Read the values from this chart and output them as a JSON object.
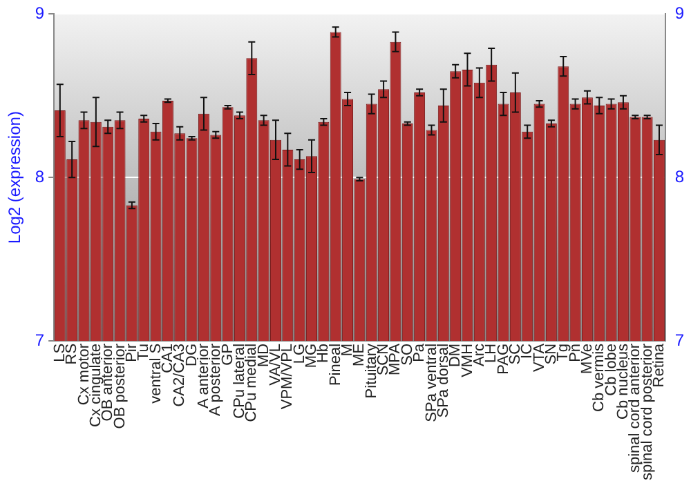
{
  "chart_data": {
    "type": "bar",
    "ylabel": "Log2 (expression)",
    "categories": [
      "LS",
      "RS",
      "Cx motor",
      "Cx cingulate",
      "OB anterior",
      "OB posterior",
      "Pir",
      "Tu",
      "ventral S",
      "CA1",
      "CA2/CA3",
      "DG",
      "A anterior",
      "A posterior",
      "GP",
      "CPu lateral",
      "CPu medial",
      "MD",
      "VA/VL",
      "VPM/VPL",
      "LG",
      "MG",
      "Hb",
      "Pineal",
      "M",
      "ME",
      "Pituitary",
      "SCN",
      "MPA",
      "SO",
      "Pa",
      "SPa ventral",
      "SPa dorsal",
      "DM",
      "VMH",
      "Arc",
      "LH",
      "PAG",
      "SC",
      "IC",
      "VTA",
      "SN",
      "Tg",
      "Pn",
      "MVe",
      "Cb vermis",
      "Cb lobe",
      "Cb nucleus",
      "spinal cord anterior",
      "spinal cord posterior",
      "Retina"
    ],
    "values": [
      8.41,
      8.11,
      8.35,
      8.34,
      8.31,
      8.35,
      7.83,
      8.36,
      8.28,
      8.47,
      8.27,
      8.24,
      8.39,
      8.26,
      8.43,
      8.38,
      8.73,
      8.35,
      8.23,
      8.17,
      8.11,
      8.13,
      8.34,
      8.89,
      8.48,
      7.99,
      8.45,
      8.54,
      8.83,
      8.33,
      8.52,
      8.29,
      8.44,
      8.65,
      8.66,
      8.58,
      8.69,
      8.45,
      8.52,
      8.28,
      8.45,
      8.33,
      8.68,
      8.45,
      8.49,
      8.44,
      8.45,
      8.46,
      8.37,
      8.37,
      8.23
    ],
    "errors": [
      0.16,
      0.11,
      0.05,
      0.15,
      0.04,
      0.05,
      0.02,
      0.02,
      0.05,
      0.01,
      0.04,
      0.01,
      0.1,
      0.02,
      0.01,
      0.02,
      0.1,
      0.03,
      0.12,
      0.1,
      0.06,
      0.1,
      0.02,
      0.03,
      0.04,
      0.01,
      0.06,
      0.05,
      0.06,
      0.01,
      0.02,
      0.03,
      0.1,
      0.04,
      0.1,
      0.09,
      0.1,
      0.07,
      0.12,
      0.04,
      0.02,
      0.02,
      0.06,
      0.03,
      0.04,
      0.05,
      0.03,
      0.04,
      0.01,
      0.01,
      0.09
    ],
    "color": "#b03030",
    "ylim": [
      7,
      9
    ],
    "yticks": [
      7,
      8,
      9
    ],
    "y2lim": [
      7,
      9
    ],
    "y2ticks": [
      7,
      8,
      9
    ],
    "grid": "y",
    "legend": false
  }
}
